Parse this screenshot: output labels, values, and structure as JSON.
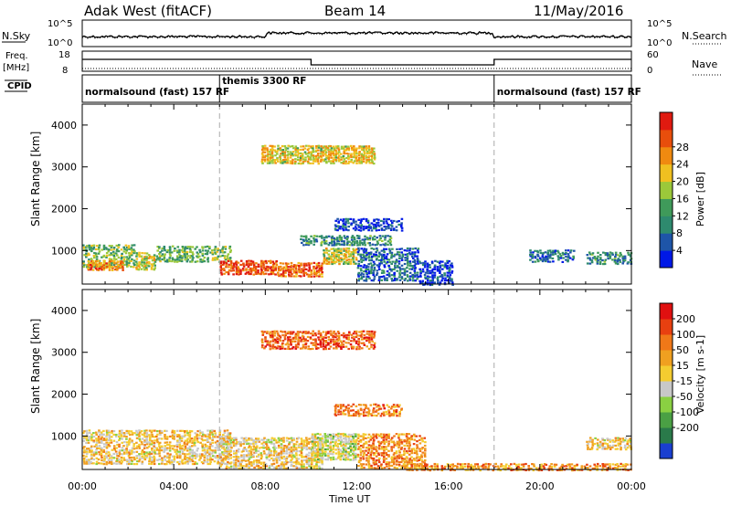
{
  "header": {
    "station": "Adak West (fitACF)",
    "beam": "Beam 14",
    "date": "11/May/2016"
  },
  "noise_panel": {
    "left_label": "N.Sky",
    "left_ticks": [
      "10^5",
      "10^0"
    ],
    "right_ticks": [
      "10^5",
      "10^0"
    ],
    "right_label": "N.Search"
  },
  "freq_panel": {
    "left_label_line1": "Freq.",
    "left_label_line2": "[MHz]",
    "left_ticks": [
      "18",
      "8"
    ],
    "right_ticks": [
      "60",
      "0"
    ],
    "right_label": "Nave",
    "series": {
      "freq_step_hours": [
        0,
        10,
        18,
        24
      ],
      "freq_levels": [
        "high",
        "low",
        "high"
      ]
    }
  },
  "cpid_panel": {
    "label": "CPID",
    "segments": [
      {
        "text": "normalsound (fast) 157 RF",
        "start": 0
      },
      {
        "text": "themis 3300 RF",
        "start": 6
      },
      {
        "text": "normalsound (fast) 157 RF",
        "start": 18
      }
    ]
  },
  "time_axis": {
    "ticks": [
      "00:00",
      "04:00",
      "08:00",
      "12:00",
      "16:00",
      "20:00",
      "00:00"
    ],
    "xlabel": "Time UT",
    "range_hours": [
      0,
      24
    ],
    "boundaries_hours": [
      6,
      18
    ]
  },
  "chart_data": [
    {
      "type": "heatmap",
      "quantity": "Power",
      "ylabel": "Slant Range [km]",
      "yticks": [
        "1000",
        "2000",
        "3000",
        "4000"
      ],
      "ylim": [
        200,
        4500
      ],
      "colorbar": {
        "label": "Power [dB]",
        "ticks": [
          "4",
          "8",
          "12",
          "16",
          "20",
          "24",
          "28"
        ],
        "colors": [
          "#0018e6",
          "#1e55a8",
          "#2e8a6e",
          "#3f9a5a",
          "#9bc83a",
          "#f0c020",
          "#f08a10",
          "#e84e0c",
          "#e01a10"
        ]
      },
      "regions": [
        {
          "t": [
            0,
            2.3
          ],
          "r": [
            620,
            1180
          ],
          "level": 0.45
        },
        {
          "t": [
            0.2,
            1.8
          ],
          "r": [
            550,
            800
          ],
          "level": 0.75
        },
        {
          "t": [
            2.3,
            3.2
          ],
          "r": [
            560,
            1000
          ],
          "level": 0.55
        },
        {
          "t": [
            3.2,
            6.5
          ],
          "r": [
            750,
            1150
          ],
          "level": 0.4
        },
        {
          "t": [
            6,
            8.5
          ],
          "r": [
            450,
            800
          ],
          "level": 0.85
        },
        {
          "t": [
            8.5,
            10.5
          ],
          "r": [
            400,
            750
          ],
          "level": 0.8
        },
        {
          "t": [
            10.5,
            12
          ],
          "r": [
            700,
            1100
          ],
          "level": 0.55
        },
        {
          "t": [
            9.5,
            13.5
          ],
          "r": [
            1150,
            1400
          ],
          "level": 0.3
        },
        {
          "t": [
            11,
            14
          ],
          "r": [
            1500,
            1800
          ],
          "level": 0.1
        },
        {
          "t": [
            12,
            14.7
          ],
          "r": [
            300,
            1100
          ],
          "level": 0.2
        },
        {
          "t": [
            14.7,
            16.2
          ],
          "r": [
            200,
            800
          ],
          "level": 0.12
        },
        {
          "t": [
            19.5,
            21.5
          ],
          "r": [
            750,
            1050
          ],
          "level": 0.18
        },
        {
          "t": [
            22,
            24
          ],
          "r": [
            700,
            1000
          ],
          "level": 0.3
        },
        {
          "t": [
            7.8,
            12.8
          ],
          "r": [
            3100,
            3550
          ],
          "level": 0.6
        }
      ]
    },
    {
      "type": "heatmap",
      "quantity": "Velocity",
      "ylabel": "Slant Range [km]",
      "yticks": [
        "1000",
        "2000",
        "3000",
        "4000"
      ],
      "ylim": [
        200,
        4500
      ],
      "colorbar": {
        "label": "Velocity [m s-1]",
        "ticks": [
          "200",
          "100",
          "50",
          "15",
          "-15",
          "-50",
          "-100",
          "-200"
        ],
        "colors": [
          "#1a3fd0",
          "#2a7a4a",
          "#4aa044",
          "#8ad042",
          "#c8c8c8",
          "#f4cc30",
          "#f0a020",
          "#f07818",
          "#e84010",
          "#e01010"
        ]
      },
      "regions": [
        {
          "t": [
            0,
            6.5
          ],
          "r": [
            350,
            1180
          ],
          "level": 0.45
        },
        {
          "t": [
            6,
            10.5
          ],
          "r": [
            250,
            1000
          ],
          "level": 0.45
        },
        {
          "t": [
            10,
            12
          ],
          "r": [
            450,
            1100
          ],
          "level": 0.55
        },
        {
          "t": [
            11,
            14
          ],
          "r": [
            1500,
            1800
          ],
          "level": 0.25
        },
        {
          "t": [
            12,
            15
          ],
          "r": [
            250,
            1100
          ],
          "level": 0.3
        },
        {
          "t": [
            14,
            24
          ],
          "r": [
            200,
            380
          ],
          "level": 0.3
        },
        {
          "t": [
            22,
            24
          ],
          "r": [
            700,
            1000
          ],
          "level": 0.45
        },
        {
          "t": [
            7.8,
            12.8
          ],
          "r": [
            3100,
            3550
          ],
          "level": 0.2
        }
      ]
    }
  ]
}
